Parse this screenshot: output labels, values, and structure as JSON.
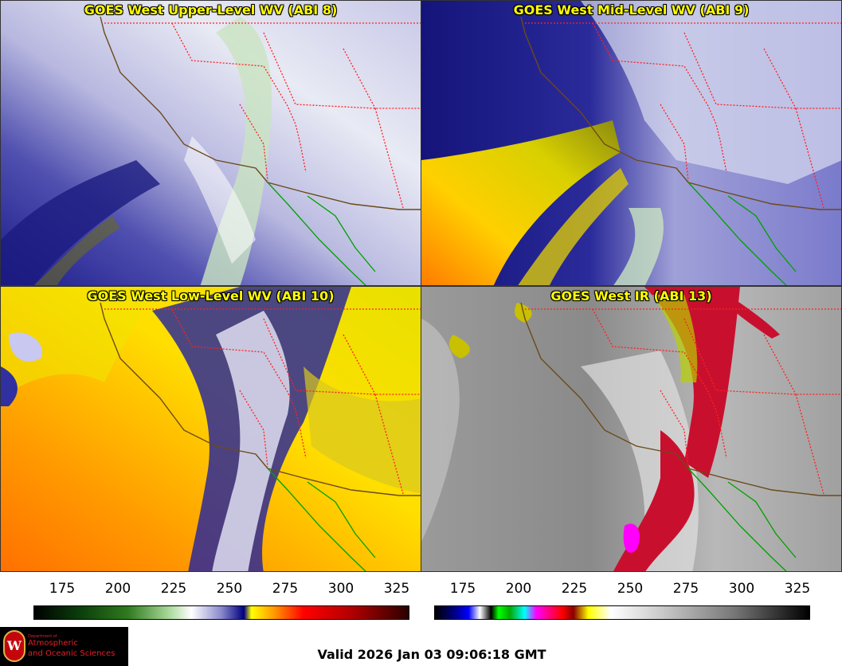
{
  "panels": [
    {
      "title": "GOES West Upper-Level WV (ABI 8)",
      "scheme": "wv-upper"
    },
    {
      "title": "GOES West Mid-Level WV (ABI 9)",
      "scheme": "wv-mid"
    },
    {
      "title": "GOES West Low-Level WV (ABI 10)",
      "scheme": "wv-low"
    },
    {
      "title": "GOES West IR (ABI 13)",
      "scheme": "ir"
    }
  ],
  "colorbars": {
    "wv": {
      "ticks": [
        "175",
        "200",
        "225",
        "250",
        "275",
        "300",
        "325"
      ],
      "range": [
        160,
        330
      ]
    },
    "ir": {
      "ticks": [
        "175",
        "200",
        "225",
        "250",
        "275",
        "300",
        "325"
      ],
      "range": [
        160,
        330
      ]
    }
  },
  "logo": {
    "line1": "Department of",
    "line2": "Atmospheric",
    "line3": "and Oceanic Sciences",
    "emblem": "W"
  },
  "valid_time": "Valid 2026 Jan 03 09:06:18 GMT",
  "colors": {
    "title": "#ffff00",
    "coast": "#6b4a1a",
    "border_state": "#ff2020",
    "border_mexico": "#00a000"
  }
}
